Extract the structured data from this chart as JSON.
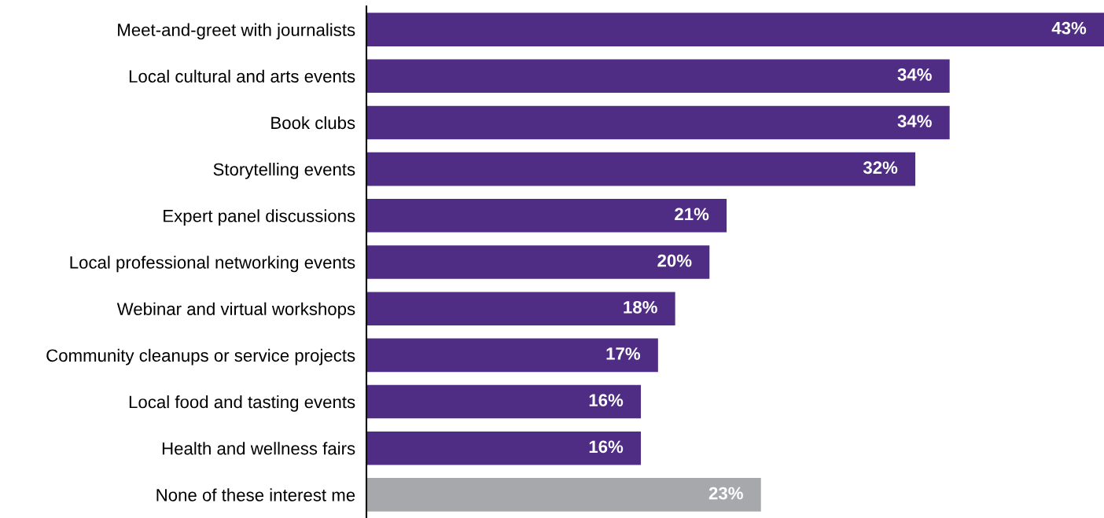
{
  "chart_data": {
    "type": "bar",
    "orientation": "horizontal",
    "categories": [
      "Meet-and-greet with journalists",
      "Local cultural and arts events",
      "Book clubs",
      "Storytelling events",
      "Expert panel discussions",
      "Local professional networking events",
      "Webinar and virtual workshops",
      "Community cleanups or service projects",
      "Local food and tasting events",
      "Health and wellness fairs",
      "None of these interest me"
    ],
    "values": [
      43,
      34,
      34,
      32,
      21,
      20,
      18,
      17,
      16,
      16,
      23
    ],
    "colors": [
      "#4f2d84",
      "#4f2d84",
      "#4f2d84",
      "#4f2d84",
      "#4f2d84",
      "#4f2d84",
      "#4f2d84",
      "#4f2d84",
      "#4f2d84",
      "#4f2d84",
      "#a7a8ab"
    ],
    "value_labels": [
      "43%",
      "34%",
      "34%",
      "32%",
      "21%",
      "20%",
      "18%",
      "17%",
      "16%",
      "16%",
      "23%"
    ],
    "xlim": [
      0,
      43
    ],
    "tick_labels": "y",
    "grid": false,
    "legend": false
  }
}
